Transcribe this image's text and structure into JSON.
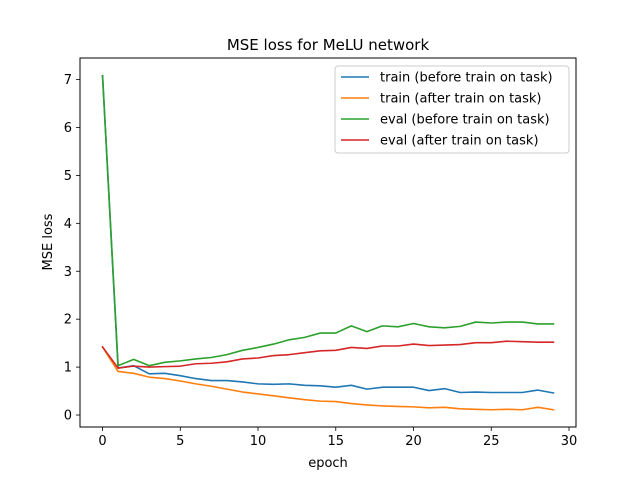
{
  "chart_data": {
    "type": "line",
    "title": "MSE loss for MeLU network",
    "xlabel": "epoch",
    "ylabel": "MSE loss",
    "xlim": [
      -1.45,
      30.45
    ],
    "ylim": [
      -0.25,
      7.45
    ],
    "xticks": [
      0,
      5,
      10,
      15,
      20,
      25,
      30
    ],
    "yticks": [
      0,
      1,
      2,
      3,
      4,
      5,
      6,
      7
    ],
    "grid": false,
    "legend_position": "top-right",
    "x": [
      0,
      1,
      2,
      3,
      4,
      5,
      6,
      7,
      8,
      9,
      10,
      11,
      12,
      13,
      14,
      15,
      16,
      17,
      18,
      19,
      20,
      21,
      22,
      23,
      24,
      25,
      26,
      27,
      28,
      29
    ],
    "series": [
      {
        "name": "train (before train on task)",
        "color": "#1f77b4",
        "values": [
          7.08,
          0.98,
          1.03,
          0.86,
          0.87,
          0.82,
          0.76,
          0.72,
          0.72,
          0.69,
          0.65,
          0.64,
          0.65,
          0.62,
          0.61,
          0.58,
          0.62,
          0.54,
          0.58,
          0.58,
          0.58,
          0.51,
          0.55,
          0.47,
          0.48,
          0.47,
          0.47,
          0.47,
          0.52,
          0.46
        ]
      },
      {
        "name": "train (after train on task)",
        "color": "#ff7f0e",
        "values": [
          1.42,
          0.91,
          0.87,
          0.79,
          0.76,
          0.71,
          0.65,
          0.6,
          0.54,
          0.48,
          0.44,
          0.4,
          0.36,
          0.32,
          0.29,
          0.28,
          0.24,
          0.21,
          0.19,
          0.18,
          0.17,
          0.15,
          0.16,
          0.13,
          0.12,
          0.11,
          0.12,
          0.11,
          0.16,
          0.11
        ]
      },
      {
        "name": "eval (before train on task)",
        "color": "#2ca02c",
        "values": [
          7.08,
          1.03,
          1.16,
          1.03,
          1.1,
          1.13,
          1.17,
          1.2,
          1.26,
          1.35,
          1.41,
          1.48,
          1.57,
          1.62,
          1.71,
          1.71,
          1.86,
          1.74,
          1.86,
          1.84,
          1.91,
          1.84,
          1.82,
          1.85,
          1.94,
          1.92,
          1.94,
          1.94,
          1.9,
          1.9
        ]
      },
      {
        "name": "eval (after train on task)",
        "color": "#d62728",
        "values": [
          1.42,
          0.98,
          1.02,
          1.0,
          1.01,
          1.02,
          1.07,
          1.08,
          1.11,
          1.17,
          1.19,
          1.24,
          1.26,
          1.3,
          1.34,
          1.35,
          1.41,
          1.39,
          1.44,
          1.44,
          1.48,
          1.45,
          1.46,
          1.47,
          1.51,
          1.51,
          1.54,
          1.53,
          1.52,
          1.52
        ]
      }
    ]
  }
}
